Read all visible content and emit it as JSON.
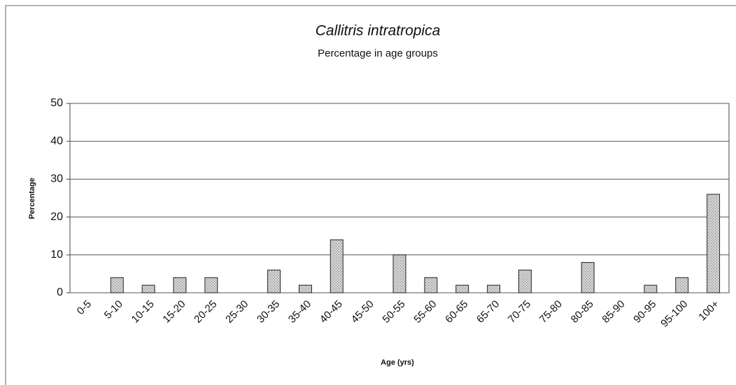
{
  "chart_data": {
    "type": "bar",
    "title": "Callitris intratropica",
    "subtitle": "Percentage in age groups",
    "x_label": "Age (yrs)",
    "y_label": "Percentage",
    "categories": [
      "0-5",
      "5-10",
      "10-15",
      "15-20",
      "20-25",
      "25-30",
      "30-35",
      "35-40",
      "40-45",
      "45-50",
      "50-55",
      "55-60",
      "60-65",
      "65-70",
      "70-75",
      "75-80",
      "80-85",
      "85-90",
      "90-95",
      "95-100",
      "100+"
    ],
    "values": [
      0,
      4,
      2,
      4,
      4,
      0,
      6,
      2,
      14,
      0,
      10,
      4,
      2,
      2,
      6,
      0,
      8,
      0,
      2,
      4,
      26
    ],
    "color": "#c4c4c4",
    "ylim": [
      0,
      50
    ],
    "yticks": [
      0,
      10,
      20,
      30,
      40,
      50
    ],
    "grid": true
  }
}
